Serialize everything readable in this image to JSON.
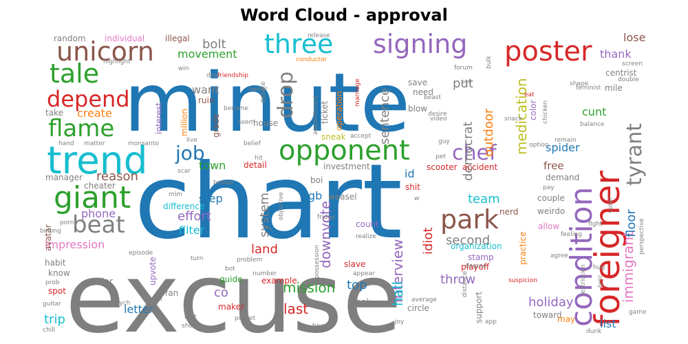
{
  "chart_data": {
    "type": "wordcloud",
    "title": "Word Cloud - approval",
    "words": [
      {
        "text": "excuse",
        "weight": 100,
        "color": "#7f7f7f"
      },
      {
        "text": "chart",
        "weight": 97,
        "color": "#1f77b4"
      },
      {
        "text": "minute",
        "weight": 92,
        "color": "#1f77b4"
      },
      {
        "text": "trend",
        "weight": 42,
        "color": "#17becf"
      },
      {
        "text": "foreigner",
        "weight": 36,
        "color": "#d62728"
      },
      {
        "text": "condition",
        "weight": 34,
        "color": "#9467bd"
      },
      {
        "text": "opponent",
        "weight": 32,
        "color": "#2ca02c"
      },
      {
        "text": "giant",
        "weight": 32,
        "color": "#2ca02c"
      },
      {
        "text": "poster",
        "weight": 31,
        "color": "#d62728"
      },
      {
        "text": "unicorn",
        "weight": 29,
        "color": "#8c564b"
      },
      {
        "text": "tale",
        "weight": 29,
        "color": "#2ca02c"
      },
      {
        "text": "park",
        "weight": 28,
        "color": "#8c564b"
      },
      {
        "text": "three",
        "weight": 28,
        "color": "#17becf"
      },
      {
        "text": "signing",
        "weight": 28,
        "color": "#9467bd"
      },
      {
        "text": "flame",
        "weight": 26,
        "color": "#2ca02c"
      },
      {
        "text": "beat",
        "weight": 26,
        "color": "#7f7f7f"
      },
      {
        "text": "depend",
        "weight": 25,
        "color": "#d62728"
      },
      {
        "text": "tyrant",
        "weight": 22,
        "color": "#7f7f7f"
      },
      {
        "text": "chef",
        "weight": 22,
        "color": "#9467bd"
      },
      {
        "text": "drop",
        "weight": 22,
        "color": "#7f7f7f"
      },
      {
        "text": "job",
        "weight": 21,
        "color": "#1f77b4"
      },
      {
        "text": "immigrant",
        "weight": 17,
        "color": "#e377c2"
      },
      {
        "text": "interview",
        "weight": 16,
        "color": "#9467bd"
      },
      {
        "text": "downvote",
        "weight": 15,
        "color": "#9467bd"
      },
      {
        "text": "mission",
        "weight": 15,
        "color": "#2ca02c"
      },
      {
        "text": "hall",
        "weight": 15,
        "color": "#17becf"
      },
      {
        "text": "medication",
        "weight": 15,
        "color": "#bcbd22"
      },
      {
        "text": "last",
        "weight": 15,
        "color": "#d62728"
      },
      {
        "text": "floor",
        "weight": 14,
        "color": "#1f77b4"
      },
      {
        "text": "throw",
        "weight": 14,
        "color": "#9467bd"
      },
      {
        "text": "holiday",
        "weight": 14,
        "color": "#9467bd"
      },
      {
        "text": "democrat",
        "weight": 13,
        "color": "#7f7f7f"
      },
      {
        "text": "sentence",
        "weight": 13,
        "color": "#7f7f7f"
      },
      {
        "text": "system",
        "weight": 13,
        "color": "#7f7f7f"
      },
      {
        "text": "idiot",
        "weight": 13,
        "color": "#d62728"
      },
      {
        "text": "outdoor",
        "weight": 13,
        "color": "#ff7f0e"
      },
      {
        "text": "reason",
        "weight": 13,
        "color": "#8c564b"
      },
      {
        "text": "top",
        "weight": 13,
        "color": "#1f77b4"
      },
      {
        "text": "land",
        "weight": 13,
        "color": "#d62728"
      },
      {
        "text": "effort",
        "weight": 13,
        "color": "#9467bd"
      },
      {
        "text": "second",
        "weight": 13,
        "color": "#7f7f7f"
      },
      {
        "text": "bolt",
        "weight": 13,
        "color": "#7f7f7f"
      },
      {
        "text": "put",
        "weight": 13,
        "color": "#7f7f7f"
      },
      {
        "text": "team",
        "weight": 13,
        "color": "#17becf"
      },
      {
        "text": "trip",
        "weight": 13,
        "color": "#17becf"
      },
      {
        "text": "co",
        "weight": 13,
        "color": "#9467bd"
      },
      {
        "text": "cunt",
        "weight": 12,
        "color": "#2ca02c"
      },
      {
        "text": "letter",
        "weight": 12,
        "color": "#1f77b4"
      },
      {
        "text": "impression",
        "weight": 12,
        "color": "#e377c2"
      },
      {
        "text": "movement",
        "weight": 12,
        "color": "#2ca02c"
      },
      {
        "text": "lose",
        "weight": 12,
        "color": "#8c564b"
      },
      {
        "text": "thank",
        "weight": 12,
        "color": "#9467bd"
      },
      {
        "text": "spider",
        "weight": 12,
        "color": "#1f77b4"
      },
      {
        "text": "step",
        "weight": 12,
        "color": "#1f77b4"
      },
      {
        "text": "town",
        "weight": 12,
        "color": "#2ca02c"
      },
      {
        "text": "create",
        "weight": 12,
        "color": "#ff7f0e"
      },
      {
        "text": "want",
        "weight": 12,
        "color": "#7f7f7f"
      },
      {
        "text": "filter",
        "weight": 12,
        "color": "#17becf"
      },
      {
        "text": "phone",
        "weight": 12,
        "color": "#9467bd"
      },
      {
        "text": "list",
        "weight": 12,
        "color": "#1f77b4"
      },
      {
        "text": "id",
        "weight": 12,
        "color": "#1f77b4"
      },
      {
        "text": "gb",
        "weight": 12,
        "color": "#1f77b4"
      },
      {
        "text": "free",
        "weight": 11,
        "color": "#8c564b"
      },
      {
        "text": "centrist",
        "weight": 9,
        "color": "#7f7f7f"
      },
      {
        "text": "nerd",
        "weight": 9,
        "color": "#8c564b"
      },
      {
        "text": "couple",
        "weight": 9,
        "color": "#7f7f7f"
      },
      {
        "text": "weirdo",
        "weight": 9,
        "color": "#7f7f7f"
      },
      {
        "text": "allow",
        "weight": 9,
        "color": "#e377c2"
      },
      {
        "text": "count",
        "weight": 9,
        "color": "#9467bd"
      },
      {
        "text": "playoff",
        "weight": 9,
        "color": "#d62728"
      },
      {
        "text": "organization",
        "weight": 9,
        "color": "#17becf"
      },
      {
        "text": "stamp",
        "weight": 9,
        "color": "#9467bd"
      },
      {
        "text": "slave",
        "weight": 9,
        "color": "#d62728"
      },
      {
        "text": "example",
        "weight": 9,
        "color": "#d62728"
      },
      {
        "text": "guide",
        "weight": 9,
        "color": "#2ca02c"
      },
      {
        "text": "maker",
        "weight": 9,
        "color": "#d62728"
      },
      {
        "text": "fan",
        "weight": 9,
        "color": "#7f7f7f"
      },
      {
        "text": "liar",
        "weight": 9,
        "color": "#7f7f7f"
      },
      {
        "text": "know",
        "weight": 9,
        "color": "#7f7f7f"
      },
      {
        "text": "spot",
        "weight": 9,
        "color": "#d62728"
      },
      {
        "text": "habit",
        "weight": 9,
        "color": "#7f7f7f"
      },
      {
        "text": "circle",
        "weight": 9,
        "color": "#7f7f7f"
      },
      {
        "text": "bank",
        "weight": 9,
        "color": "#7f7f7f"
      },
      {
        "text": "support",
        "weight": 9,
        "color": "#7f7f7f"
      },
      {
        "text": "toward",
        "weight": 9,
        "color": "#7f7f7f"
      },
      {
        "text": "may",
        "weight": 9,
        "color": "#ff7f0e"
      },
      {
        "text": "detail",
        "weight": 9,
        "color": "#d62728"
      },
      {
        "text": "investment",
        "weight": 9,
        "color": "#7f7f7f"
      },
      {
        "text": "scooter",
        "weight": 9,
        "color": "#d62728"
      },
      {
        "text": "accident",
        "weight": 9,
        "color": "#d62728"
      },
      {
        "text": "demand",
        "weight": 9,
        "color": "#7f7f7f"
      },
      {
        "text": "sneak",
        "weight": 9,
        "color": "#bcbd22"
      },
      {
        "text": "house",
        "weight": 9,
        "color": "#7f7f7f"
      },
      {
        "text": "ruin",
        "weight": 9,
        "color": "#8c564b"
      },
      {
        "text": "manager",
        "weight": 9,
        "color": "#7f7f7f"
      },
      {
        "text": "cheater",
        "weight": 9,
        "color": "#7f7f7f"
      },
      {
        "text": "difference",
        "weight": 9,
        "color": "#17becf"
      },
      {
        "text": "boi",
        "weight": 9,
        "color": "#7f7f7f"
      },
      {
        "text": "weasel",
        "weight": 9,
        "color": "#7f7f7f"
      },
      {
        "text": "shit",
        "weight": 9,
        "color": "#d62728"
      },
      {
        "text": "take",
        "weight": 9,
        "color": "#7f7f7f"
      },
      {
        "text": "save",
        "weight": 9,
        "color": "#7f7f7f"
      },
      {
        "text": "need",
        "weight": 9,
        "color": "#7f7f7f"
      },
      {
        "text": "blow",
        "weight": 9,
        "color": "#7f7f7f"
      },
      {
        "text": "mile",
        "weight": 9,
        "color": "#7f7f7f"
      },
      {
        "text": "color",
        "weight": 8,
        "color": "#9467bd"
      },
      {
        "text": "ticket",
        "weight": 8,
        "color": "#7f7f7f"
      },
      {
        "text": "operation",
        "weight": 8,
        "color": "#ff7f0e"
      },
      {
        "text": "grade",
        "weight": 8,
        "color": "#8c564b"
      },
      {
        "text": "million",
        "weight": 8,
        "color": "#ff7f0e"
      },
      {
        "text": "interest",
        "weight": 8,
        "color": "#9467bd"
      },
      {
        "text": "individual",
        "weight": 8,
        "color": "#e377c2"
      },
      {
        "text": "illegal",
        "weight": 8,
        "color": "#8c564b"
      },
      {
        "text": "random",
        "weight": 8,
        "color": "#7f7f7f"
      },
      {
        "text": "avatar",
        "weight": 8,
        "color": "#8c564b"
      },
      {
        "text": "practice",
        "weight": 8,
        "color": "#ff7f0e"
      },
      {
        "text": "upvote",
        "weight": 8,
        "color": "#9467bd"
      },
      {
        "text": "friendship",
        "weight": 6,
        "color": "#d62728"
      },
      {
        "text": "highlight",
        "weight": 6,
        "color": "#7f7f7f"
      },
      {
        "text": "win",
        "weight": 6,
        "color": "#7f7f7f"
      },
      {
        "text": "door",
        "weight": 6,
        "color": "#7f7f7f"
      },
      {
        "text": "release",
        "weight": 6,
        "color": "#7f7f7f"
      },
      {
        "text": "conductor",
        "weight": 6,
        "color": "#ff7f0e"
      },
      {
        "text": "forum",
        "weight": 6,
        "color": "#7f7f7f"
      },
      {
        "text": "bulk",
        "weight": 6,
        "color": "#7f7f7f"
      },
      {
        "text": "screen",
        "weight": 6,
        "color": "#7f7f7f"
      },
      {
        "text": "desire",
        "weight": 6,
        "color": "#7f7f7f"
      },
      {
        "text": "beast",
        "weight": 6,
        "color": "#7f7f7f"
      },
      {
        "text": "see",
        "weight": 6,
        "color": "#7f7f7f"
      },
      {
        "text": "shape",
        "weight": 6,
        "color": "#7f7f7f"
      },
      {
        "text": "feminist",
        "weight": 6,
        "color": "#7f7f7f"
      },
      {
        "text": "double",
        "weight": 6,
        "color": "#7f7f7f"
      },
      {
        "text": "eat",
        "weight": 6,
        "color": "#d62728"
      },
      {
        "text": "owner",
        "weight": 6,
        "color": "#7f7f7f"
      },
      {
        "text": "become",
        "weight": 6,
        "color": "#7f7f7f"
      },
      {
        "text": "debate",
        "weight": 6,
        "color": "#7f7f7f"
      },
      {
        "text": "marriage",
        "weight": 6,
        "color": "#d62728"
      },
      {
        "text": "seem",
        "weight": 6,
        "color": "#7f7f7f"
      },
      {
        "text": "appointment",
        "weight": 6,
        "color": "#7f7f7f"
      },
      {
        "text": "video",
        "weight": 6,
        "color": "#7f7f7f"
      },
      {
        "text": "snack",
        "weight": 6,
        "color": "#7f7f7f"
      },
      {
        "text": "chicken",
        "weight": 6,
        "color": "#7f7f7f"
      },
      {
        "text": "balance",
        "weight": 6,
        "color": "#7f7f7f"
      },
      {
        "text": "hand",
        "weight": 6,
        "color": "#7f7f7f"
      },
      {
        "text": "matter",
        "weight": 6,
        "color": "#7f7f7f"
      },
      {
        "text": "monsanto",
        "weight": 6,
        "color": "#7f7f7f"
      },
      {
        "text": "live",
        "weight": 6,
        "color": "#7f7f7f"
      },
      {
        "text": "belief",
        "weight": 6,
        "color": "#7f7f7f"
      },
      {
        "text": "accept",
        "weight": 6,
        "color": "#7f7f7f"
      },
      {
        "text": "guy",
        "weight": 6,
        "color": "#7f7f7f"
      },
      {
        "text": "pet",
        "weight": 6,
        "color": "#7f7f7f"
      },
      {
        "text": "option",
        "weight": 6,
        "color": "#7f7f7f"
      },
      {
        "text": "remain",
        "weight": 6,
        "color": "#7f7f7f"
      },
      {
        "text": "scar",
        "weight": 6,
        "color": "#7f7f7f"
      },
      {
        "text": "hit",
        "weight": 6,
        "color": "#7f7f7f"
      },
      {
        "text": "beside",
        "weight": 6,
        "color": "#7f7f7f"
      },
      {
        "text": "mlm",
        "weight": 6,
        "color": "#7f7f7f"
      },
      {
        "text": "objective",
        "weight": 6,
        "color": "#7f7f7f"
      },
      {
        "text": "friday",
        "weight": 6,
        "color": "#7f7f7f"
      },
      {
        "text": "w",
        "weight": 6,
        "color": "#7f7f7f"
      },
      {
        "text": "pay",
        "weight": 6,
        "color": "#7f7f7f"
      },
      {
        "text": "voter",
        "weight": 6,
        "color": "#7f7f7f"
      },
      {
        "text": "feeling",
        "weight": 6,
        "color": "#7f7f7f"
      },
      {
        "text": "fight",
        "weight": 6,
        "color": "#7f7f7f"
      },
      {
        "text": "perspective",
        "weight": 6,
        "color": "#7f7f7f"
      },
      {
        "text": "belong",
        "weight": 6,
        "color": "#7f7f7f"
      },
      {
        "text": "porn",
        "weight": 6,
        "color": "#7f7f7f"
      },
      {
        "text": "realize",
        "weight": 6,
        "color": "#7f7f7f"
      },
      {
        "text": "episode",
        "weight": 6,
        "color": "#7f7f7f"
      },
      {
        "text": "problem",
        "weight": 6,
        "color": "#7f7f7f"
      },
      {
        "text": "turn",
        "weight": 6,
        "color": "#7f7f7f"
      },
      {
        "text": "bot",
        "weight": 6,
        "color": "#7f7f7f"
      },
      {
        "text": "agree",
        "weight": 6,
        "color": "#7f7f7f"
      },
      {
        "text": "hug",
        "weight": 6,
        "color": "#7f7f7f"
      },
      {
        "text": "degree",
        "weight": 6,
        "color": "#7f7f7f"
      },
      {
        "text": "number",
        "weight": 6,
        "color": "#7f7f7f"
      },
      {
        "text": "possession",
        "weight": 6,
        "color": "#7f7f7f"
      },
      {
        "text": "appear",
        "weight": 6,
        "color": "#7f7f7f"
      },
      {
        "text": "restriction",
        "weight": 6,
        "color": "#7f7f7f"
      },
      {
        "text": "lyric",
        "weight": 6,
        "color": "#7f7f7f"
      },
      {
        "text": "suspicion",
        "weight": 6,
        "color": "#d62728"
      },
      {
        "text": "prob",
        "weight": 6,
        "color": "#7f7f7f"
      },
      {
        "text": "uni",
        "weight": 6,
        "color": "#7f7f7f"
      },
      {
        "text": "average",
        "weight": 6,
        "color": "#7f7f7f"
      },
      {
        "text": "distance",
        "weight": 6,
        "color": "#7f7f7f"
      },
      {
        "text": "guitar",
        "weight": 6,
        "color": "#7f7f7f"
      },
      {
        "text": "psych",
        "weight": 6,
        "color": "#7f7f7f"
      },
      {
        "text": "idea",
        "weight": 6,
        "color": "#7f7f7f"
      },
      {
        "text": "text",
        "weight": 6,
        "color": "#7f7f7f"
      },
      {
        "text": "shoot",
        "weight": 6,
        "color": "#7f7f7f"
      },
      {
        "text": "pocket",
        "weight": 6,
        "color": "#7f7f7f"
      },
      {
        "text": "chill",
        "weight": 6,
        "color": "#7f7f7f"
      },
      {
        "text": "fall",
        "weight": 6,
        "color": "#7f7f7f"
      },
      {
        "text": "head",
        "weight": 6,
        "color": "#7f7f7f"
      },
      {
        "text": "joy",
        "weight": 6,
        "color": "#7f7f7f"
      },
      {
        "text": "app",
        "weight": 6,
        "color": "#7f7f7f"
      },
      {
        "text": "dunk",
        "weight": 6,
        "color": "#7f7f7f"
      },
      {
        "text": "game",
        "weight": 6,
        "color": "#7f7f7f"
      }
    ]
  }
}
